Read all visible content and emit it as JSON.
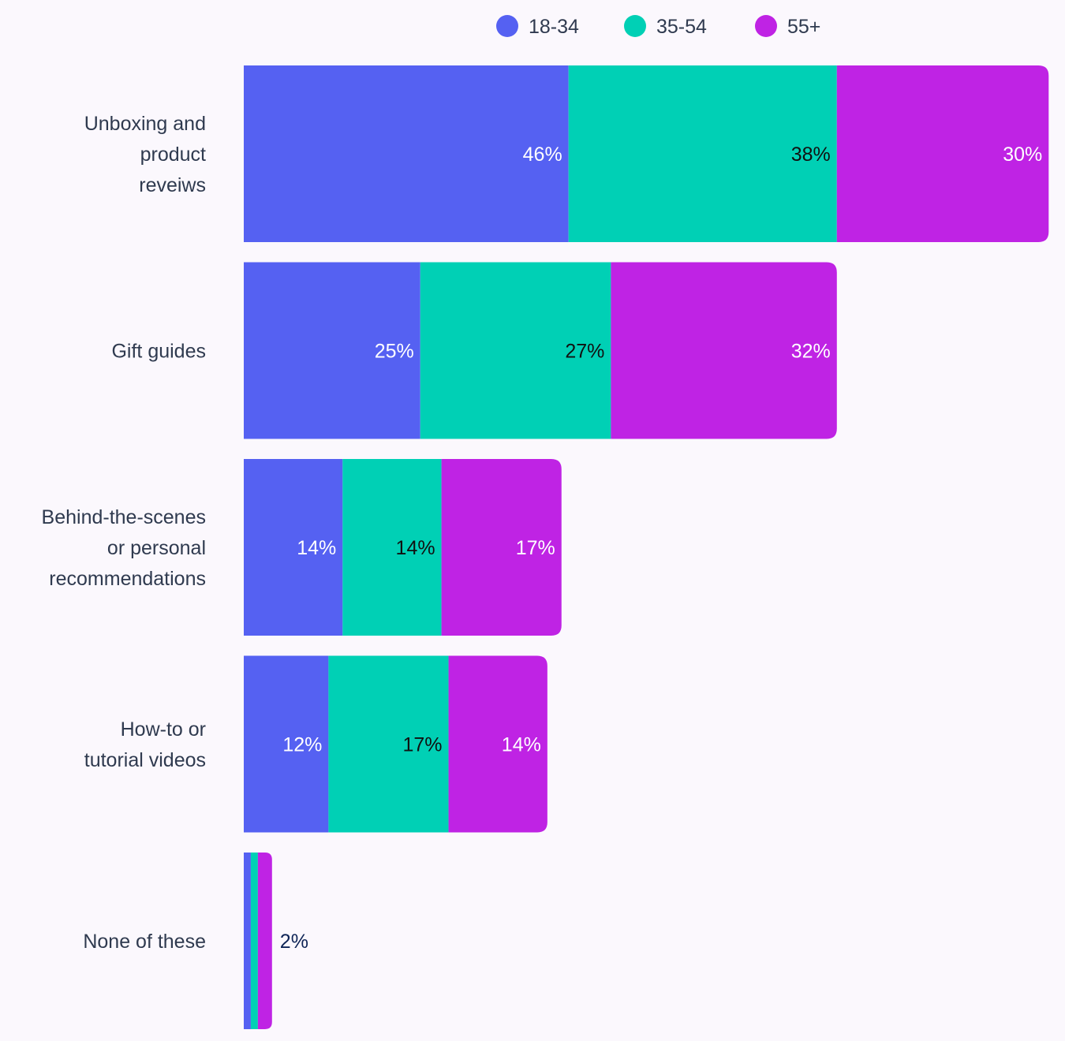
{
  "chart_data": {
    "type": "bar",
    "orientation": "horizontal",
    "stacked": true,
    "title": "",
    "xlabel": "",
    "ylabel": "",
    "legend_position": "top",
    "categories": [
      [
        "Unboxing and",
        "product",
        "reveiws"
      ],
      [
        "Gift guides"
      ],
      [
        "Behind-the-scenes",
        "or personal",
        "recommendations"
      ],
      [
        "How-to or",
        "tutorial videos"
      ],
      [
        "None of these"
      ]
    ],
    "series": [
      {
        "name": "18-34",
        "color": "#5561f2",
        "label_color": "#ffffff",
        "values": [
          46,
          25,
          14,
          12,
          1
        ]
      },
      {
        "name": "35-54",
        "color": "#00d0b5",
        "label_color": "#111111",
        "values": [
          38,
          27,
          14,
          17,
          1
        ]
      },
      {
        "name": "55+",
        "color": "#bf23e4",
        "label_color": "#ffffff",
        "values": [
          30,
          32,
          17,
          14,
          2
        ]
      }
    ],
    "value_labels": [
      [
        "46%",
        "38%",
        "30%"
      ],
      [
        "25%",
        "27%",
        "32%"
      ],
      [
        "14%",
        "14%",
        "17%"
      ],
      [
        "12%",
        "17%",
        "14%"
      ],
      [
        "",
        "",
        "2%"
      ]
    ],
    "outside_label_color": "#0e2456",
    "category_label_color": "#2f3a4f",
    "legend_text_color": "#2f3a4f"
  }
}
